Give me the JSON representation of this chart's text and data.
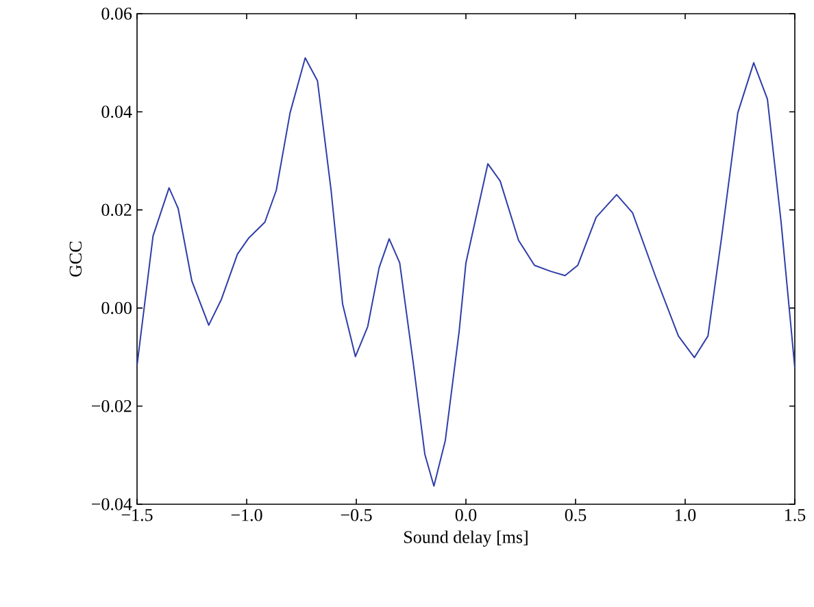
{
  "chart_data": {
    "type": "line",
    "xlabel": "Sound delay [ms]",
    "ylabel": "GCC",
    "xlim": [
      -1.5,
      1.5
    ],
    "ylim": [
      -0.04,
      0.06
    ],
    "xticks": [
      {
        "value": -1.5,
        "label": "−1.5"
      },
      {
        "value": -1.0,
        "label": "−1.0"
      },
      {
        "value": -0.5,
        "label": "−0.5"
      },
      {
        "value": 0.0,
        "label": "0.0"
      },
      {
        "value": 0.5,
        "label": "0.5"
      },
      {
        "value": 1.0,
        "label": "1.0"
      },
      {
        "value": 1.5,
        "label": "1.5"
      }
    ],
    "yticks": [
      {
        "value": -0.04,
        "label": "−0.04"
      },
      {
        "value": -0.02,
        "label": "−0.02"
      },
      {
        "value": 0.0,
        "label": "0.00"
      },
      {
        "value": 0.02,
        "label": "0.02"
      },
      {
        "value": 0.04,
        "label": "0.04"
      },
      {
        "value": 0.06,
        "label": "0.06"
      }
    ],
    "grid": false,
    "marker": "none",
    "line_style": "solid",
    "series": [
      {
        "color": "#2e3da8",
        "x": [
          -1.5,
          -1.427,
          -1.354,
          -1.3125,
          -1.25,
          -1.173,
          -1.115,
          -1.042,
          -0.99,
          -0.917,
          -0.865,
          -0.802,
          -0.733,
          -0.677,
          -0.615,
          -0.5625,
          -0.504,
          -0.448,
          -0.396,
          -0.35,
          -0.302,
          -0.24,
          -0.1875,
          -0.146,
          -0.094,
          -0.031,
          0.0,
          0.1,
          0.156,
          0.24,
          0.3125,
          0.385,
          0.452,
          0.51,
          0.594,
          0.6875,
          0.76,
          0.865,
          0.969,
          1.042,
          1.104,
          1.167,
          1.24,
          1.3125,
          1.375,
          1.4375,
          1.5
        ],
        "values": [
          -0.0117,
          0.0147,
          0.0245,
          0.0203,
          0.0055,
          -0.0035,
          0.0018,
          0.011,
          0.0143,
          0.0175,
          0.024,
          0.0398,
          0.051,
          0.0463,
          0.024,
          0.0008,
          -0.0099,
          -0.0038,
          0.0082,
          0.0141,
          0.0092,
          -0.0113,
          -0.0298,
          -0.0363,
          -0.027,
          -0.0048,
          0.0092,
          0.0294,
          0.0259,
          0.0138,
          0.0087,
          0.0075,
          0.0066,
          0.0087,
          0.0185,
          0.0231,
          0.0194,
          0.0064,
          -0.0057,
          -0.0101,
          -0.0057,
          0.0147,
          0.0398,
          0.05,
          0.0426,
          0.0175,
          -0.0122
        ]
      }
    ]
  }
}
